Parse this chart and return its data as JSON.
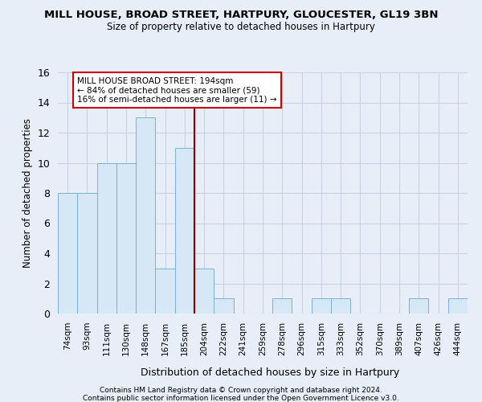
{
  "title": "MILL HOUSE, BROAD STREET, HARTPURY, GLOUCESTER, GL19 3BN",
  "subtitle": "Size of property relative to detached houses in Hartpury",
  "xlabel": "Distribution of detached houses by size in Hartpury",
  "ylabel": "Number of detached properties",
  "categories": [
    "74sqm",
    "93sqm",
    "111sqm",
    "130sqm",
    "148sqm",
    "167sqm",
    "185sqm",
    "204sqm",
    "222sqm",
    "241sqm",
    "259sqm",
    "278sqm",
    "296sqm",
    "315sqm",
    "333sqm",
    "352sqm",
    "370sqm",
    "389sqm",
    "407sqm",
    "426sqm",
    "444sqm"
  ],
  "values": [
    8,
    8,
    10,
    10,
    13,
    3,
    11,
    3,
    1,
    0,
    0,
    1,
    0,
    1,
    1,
    0,
    0,
    0,
    1,
    0,
    1
  ],
  "bar_color": "#d6e8f5",
  "bar_edge_color": "#7ab0d4",
  "vline_x_index": 7,
  "vline_color": "#8b0000",
  "annotation_text": "MILL HOUSE BROAD STREET: 194sqm\n← 84% of detached houses are smaller (59)\n16% of semi-detached houses are larger (11) →",
  "annotation_box_color": "#ffffff",
  "annotation_box_edge": "#cc0000",
  "ylim": [
    0,
    16
  ],
  "yticks": [
    0,
    2,
    4,
    6,
    8,
    10,
    12,
    14,
    16
  ],
  "grid_color": "#c8d4e4",
  "background_color": "#e8eef8",
  "footer1": "Contains HM Land Registry data © Crown copyright and database right 2024.",
  "footer2": "Contains public sector information licensed under the Open Government Licence v3.0."
}
